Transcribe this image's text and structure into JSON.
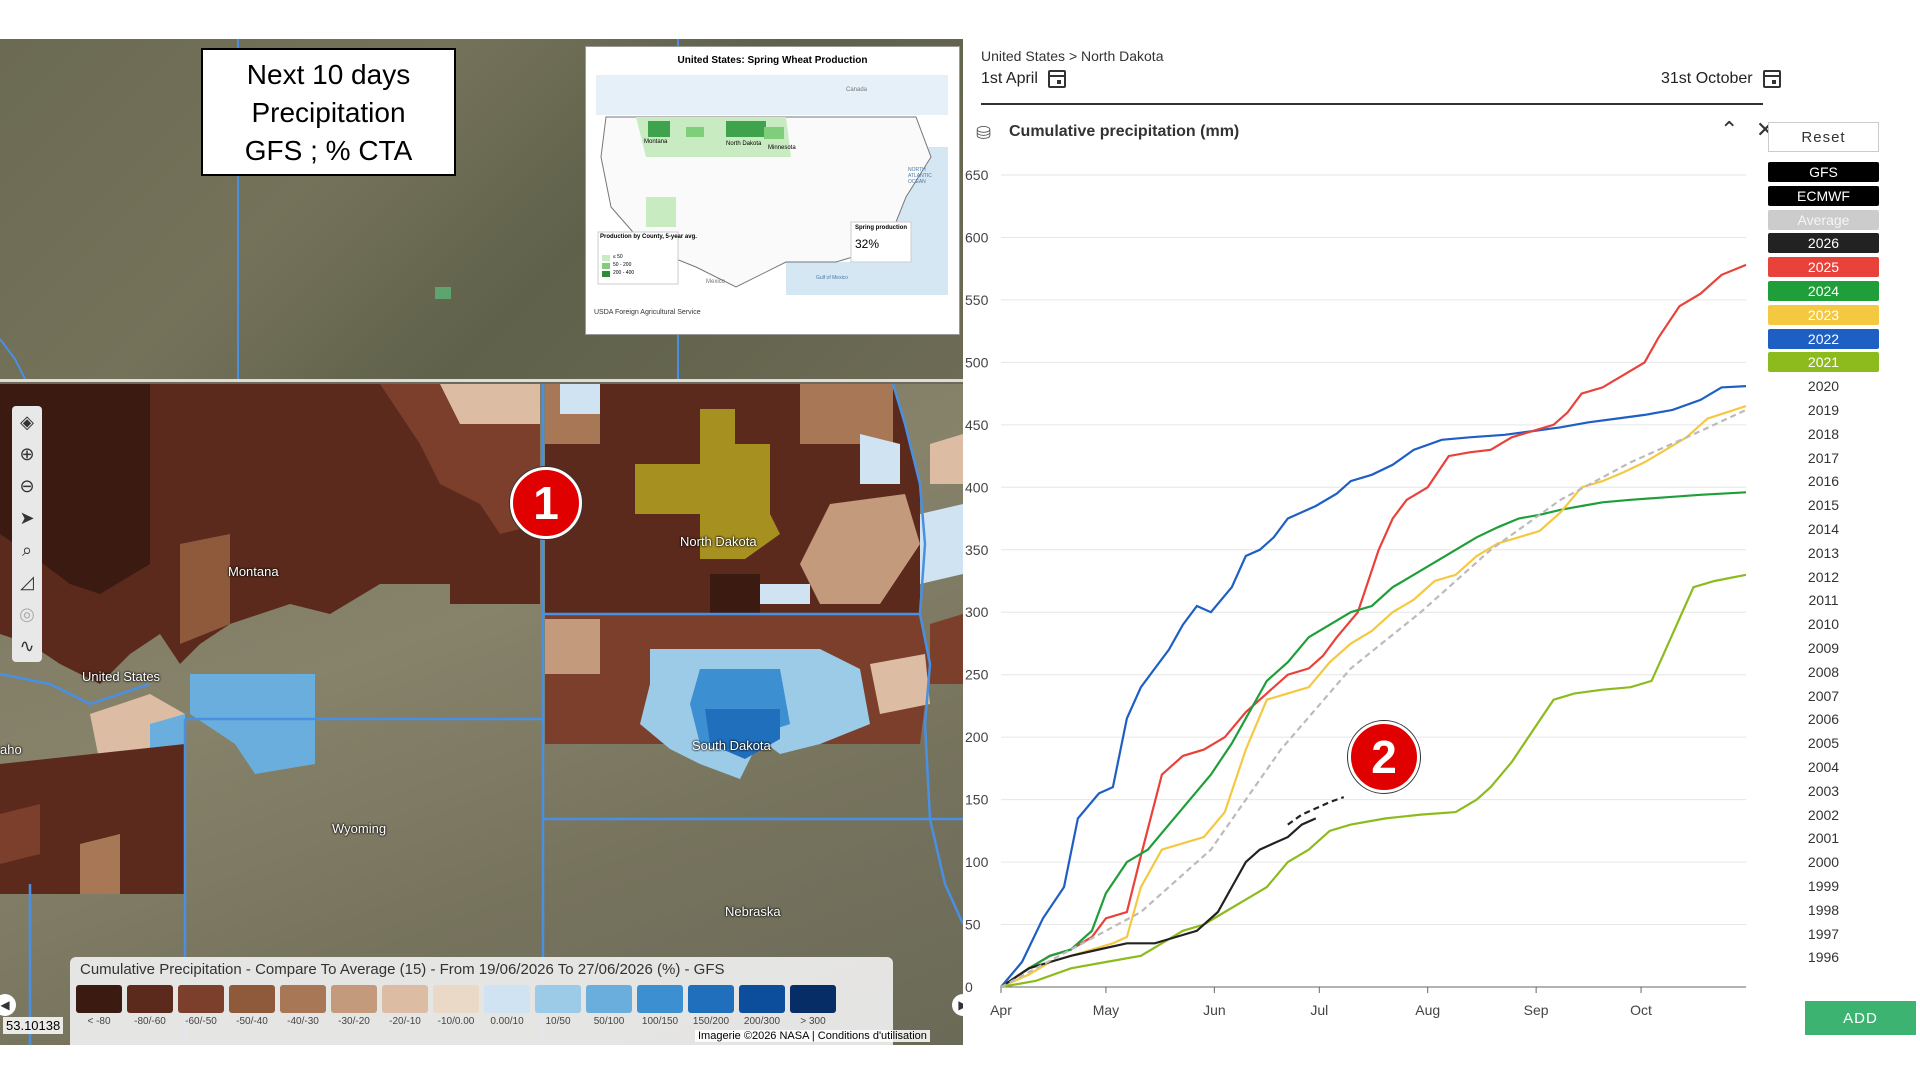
{
  "map": {
    "title_lines": [
      "Next 10 days",
      "Precipitation",
      "GFS ; % CTA"
    ],
    "inset": {
      "title": "United States: Spring Wheat Production",
      "footer": "USDA Foreign Agricultural Service",
      "labels": [
        "Montana",
        "North Dakota",
        "Minnesota",
        "Canada",
        "Mexico",
        "NORTH ATLANTIC OCEAN",
        "Gulf of Mexico"
      ],
      "note_value": "32%",
      "note_title": "Spring production",
      "legend_title": "Production by County, 5-year avg.",
      "legend_items": [
        "≤ 50",
        "50 - 200",
        "200 - 400"
      ]
    },
    "places": [
      "Montana",
      "United States",
      "North Dakota",
      "South Dakota",
      "Wyoming",
      "Nebraska",
      "aho"
    ],
    "markers": [
      "1",
      "2"
    ],
    "toolbar": [
      "layers-icon",
      "zoom-in-icon",
      "zoom-out-icon",
      "locate-icon",
      "search-icon",
      "measure-icon",
      "target-icon",
      "draw-icon"
    ],
    "legend": {
      "title": "Cumulative Precipitation - Compare To Average (15) - From 19/06/2026 To 27/06/2026 (%) - GFS",
      "items": [
        {
          "label": "< -80",
          "color": "#3b1a12"
        },
        {
          "label": "-80/-60",
          "color": "#5c2a1c"
        },
        {
          "label": "-60/-50",
          "color": "#7b3f2b"
        },
        {
          "label": "-50/-40",
          "color": "#8f5a3b"
        },
        {
          "label": "-40/-30",
          "color": "#a87756"
        },
        {
          "label": "-30/-20",
          "color": "#c49a7c"
        },
        {
          "label": "-20/-10",
          "color": "#dcbca3"
        },
        {
          "label": "-10/0.00",
          "color": "#ebd9c8"
        },
        {
          "label": "0.00/10",
          "color": "#cfe3f2"
        },
        {
          "label": "10/50",
          "color": "#9ccbe8"
        },
        {
          "label": "50/100",
          "color": "#6aaedd"
        },
        {
          "label": "100/150",
          "color": "#3c8fd0"
        },
        {
          "label": "150/200",
          "color": "#1f6fbd"
        },
        {
          "label": "200/300",
          "color": "#0c4e9c"
        },
        {
          "label": "> 300",
          "color": "#062d66"
        }
      ]
    },
    "coords": "53.10138",
    "attribution": "Imagerie ©2026 NASA | Conditions d'utilisation"
  },
  "chart_panel": {
    "breadcrumb": "United States > North Dakota",
    "date_start": "1st April",
    "date_end": "31st October",
    "title": "Cumulative precipitation (mm)",
    "reset_label": "Reset",
    "add_label": "ADD",
    "series_buttons": [
      {
        "label": "GFS",
        "color": "#000000"
      },
      {
        "label": "ECMWF",
        "color": "#000000"
      },
      {
        "label": "Average",
        "color": "#cccccc"
      },
      {
        "label": "2026",
        "color": "#222222"
      },
      {
        "label": "2025",
        "color": "#e8423a"
      },
      {
        "label": "2024",
        "color": "#1f9e3a"
      },
      {
        "label": "2023",
        "color": "#f5c842"
      },
      {
        "label": "2022",
        "color": "#1e5fc4"
      },
      {
        "label": "2021",
        "color": "#8dbb1e"
      }
    ],
    "plain_years": [
      "2020",
      "2019",
      "2018",
      "2017",
      "2016",
      "2015",
      "2014",
      "2013",
      "2012",
      "2011",
      "2010",
      "2009",
      "2008",
      "2007",
      "2006",
      "2005",
      "2004",
      "2003",
      "2002",
      "2001",
      "2000",
      "1999",
      "1998",
      "1997",
      "1996"
    ]
  },
  "chart_data": {
    "type": "line",
    "title": "Cumulative precipitation (mm)",
    "x_ticks": [
      "Apr",
      "May",
      "Jun",
      "Jul",
      "Aug",
      "Sep",
      "Oct"
    ],
    "x_days": [
      0,
      30,
      61,
      91,
      122,
      153,
      183
    ],
    "xlim": [
      0,
      213
    ],
    "ylim": [
      0,
      650
    ],
    "y_ticks": [
      0,
      50,
      100,
      150,
      200,
      250,
      300,
      350,
      400,
      450,
      500,
      550,
      600,
      650
    ],
    "grid": true,
    "series": [
      {
        "name": "2022",
        "color": "#1e5fc4",
        "dashed": false,
        "points": [
          [
            0,
            0
          ],
          [
            6,
            20
          ],
          [
            12,
            55
          ],
          [
            18,
            80
          ],
          [
            22,
            135
          ],
          [
            28,
            155
          ],
          [
            32,
            160
          ],
          [
            36,
            215
          ],
          [
            40,
            240
          ],
          [
            44,
            255
          ],
          [
            48,
            270
          ],
          [
            52,
            290
          ],
          [
            56,
            305
          ],
          [
            60,
            300
          ],
          [
            66,
            320
          ],
          [
            70,
            345
          ],
          [
            74,
            350
          ],
          [
            78,
            360
          ],
          [
            82,
            375
          ],
          [
            86,
            380
          ],
          [
            90,
            385
          ],
          [
            96,
            395
          ],
          [
            100,
            405
          ],
          [
            106,
            410
          ],
          [
            112,
            418
          ],
          [
            118,
            430
          ],
          [
            126,
            438
          ],
          [
            134,
            440
          ],
          [
            144,
            442
          ],
          [
            152,
            445
          ],
          [
            160,
            448
          ],
          [
            168,
            452
          ],
          [
            176,
            455
          ],
          [
            184,
            458
          ],
          [
            192,
            462
          ],
          [
            200,
            470
          ],
          [
            206,
            480
          ],
          [
            213,
            481
          ]
        ]
      },
      {
        "name": "2025",
        "color": "#e8423a",
        "dashed": false,
        "points": [
          [
            0,
            0
          ],
          [
            8,
            15
          ],
          [
            14,
            25
          ],
          [
            20,
            30
          ],
          [
            26,
            40
          ],
          [
            30,
            55
          ],
          [
            36,
            60
          ],
          [
            40,
            105
          ],
          [
            46,
            170
          ],
          [
            52,
            185
          ],
          [
            58,
            190
          ],
          [
            64,
            200
          ],
          [
            70,
            220
          ],
          [
            76,
            235
          ],
          [
            82,
            250
          ],
          [
            88,
            255
          ],
          [
            92,
            265
          ],
          [
            96,
            280
          ],
          [
            102,
            300
          ],
          [
            108,
            350
          ],
          [
            112,
            375
          ],
          [
            116,
            390
          ],
          [
            122,
            400
          ],
          [
            128,
            425
          ],
          [
            134,
            428
          ],
          [
            140,
            430
          ],
          [
            146,
            440
          ],
          [
            152,
            445
          ],
          [
            158,
            450
          ],
          [
            162,
            460
          ],
          [
            166,
            475
          ],
          [
            172,
            480
          ],
          [
            178,
            490
          ],
          [
            184,
            500
          ],
          [
            188,
            520
          ],
          [
            194,
            545
          ],
          [
            200,
            555
          ],
          [
            206,
            570
          ],
          [
            213,
            578
          ]
        ]
      },
      {
        "name": "2024",
        "color": "#1f9e3a",
        "dashed": false,
        "points": [
          [
            0,
            0
          ],
          [
            8,
            15
          ],
          [
            14,
            25
          ],
          [
            20,
            30
          ],
          [
            26,
            45
          ],
          [
            30,
            75
          ],
          [
            36,
            100
          ],
          [
            42,
            110
          ],
          [
            48,
            130
          ],
          [
            54,
            150
          ],
          [
            60,
            170
          ],
          [
            66,
            195
          ],
          [
            72,
            225
          ],
          [
            76,
            245
          ],
          [
            82,
            260
          ],
          [
            88,
            280
          ],
          [
            94,
            290
          ],
          [
            100,
            300
          ],
          [
            106,
            305
          ],
          [
            112,
            320
          ],
          [
            118,
            330
          ],
          [
            124,
            340
          ],
          [
            130,
            350
          ],
          [
            136,
            360
          ],
          [
            142,
            368
          ],
          [
            148,
            375
          ],
          [
            154,
            378
          ],
          [
            160,
            382
          ],
          [
            166,
            385
          ],
          [
            172,
            388
          ],
          [
            180,
            390
          ],
          [
            190,
            392
          ],
          [
            200,
            394
          ],
          [
            213,
            396
          ]
        ]
      },
      {
        "name": "2023",
        "color": "#f5c842",
        "dashed": false,
        "points": [
          [
            0,
            0
          ],
          [
            8,
            10
          ],
          [
            14,
            20
          ],
          [
            20,
            25
          ],
          [
            26,
            30
          ],
          [
            32,
            35
          ],
          [
            36,
            40
          ],
          [
            40,
            80
          ],
          [
            46,
            110
          ],
          [
            52,
            115
          ],
          [
            58,
            120
          ],
          [
            64,
            140
          ],
          [
            70,
            190
          ],
          [
            76,
            230
          ],
          [
            82,
            235
          ],
          [
            88,
            240
          ],
          [
            94,
            260
          ],
          [
            100,
            275
          ],
          [
            106,
            285
          ],
          [
            112,
            300
          ],
          [
            118,
            310
          ],
          [
            124,
            325
          ],
          [
            130,
            330
          ],
          [
            136,
            345
          ],
          [
            142,
            355
          ],
          [
            148,
            360
          ],
          [
            154,
            365
          ],
          [
            160,
            380
          ],
          [
            166,
            400
          ],
          [
            172,
            405
          ],
          [
            178,
            412
          ],
          [
            184,
            420
          ],
          [
            190,
            430
          ],
          [
            196,
            440
          ],
          [
            202,
            455
          ],
          [
            213,
            465
          ]
        ]
      },
      {
        "name": "2021",
        "color": "#8dbb1e",
        "dashed": false,
        "points": [
          [
            0,
            0
          ],
          [
            10,
            5
          ],
          [
            20,
            15
          ],
          [
            30,
            20
          ],
          [
            40,
            25
          ],
          [
            46,
            35
          ],
          [
            52,
            45
          ],
          [
            58,
            50
          ],
          [
            64,
            60
          ],
          [
            70,
            70
          ],
          [
            76,
            80
          ],
          [
            82,
            100
          ],
          [
            88,
            110
          ],
          [
            94,
            125
          ],
          [
            100,
            130
          ],
          [
            110,
            135
          ],
          [
            120,
            138
          ],
          [
            130,
            140
          ],
          [
            136,
            150
          ],
          [
            140,
            160
          ],
          [
            146,
            180
          ],
          [
            152,
            205
          ],
          [
            158,
            230
          ],
          [
            164,
            235
          ],
          [
            172,
            238
          ],
          [
            180,
            240
          ],
          [
            186,
            245
          ],
          [
            190,
            270
          ],
          [
            194,
            295
          ],
          [
            198,
            320
          ],
          [
            204,
            325
          ],
          [
            213,
            330
          ]
        ]
      },
      {
        "name": "2026",
        "color": "#222222",
        "dashed": false,
        "points": [
          [
            0,
            0
          ],
          [
            8,
            15
          ],
          [
            14,
            20
          ],
          [
            20,
            25
          ],
          [
            28,
            30
          ],
          [
            36,
            35
          ],
          [
            44,
            35
          ],
          [
            50,
            40
          ],
          [
            56,
            45
          ],
          [
            62,
            60
          ],
          [
            66,
            80
          ],
          [
            70,
            100
          ],
          [
            74,
            110
          ],
          [
            78,
            115
          ],
          [
            82,
            120
          ],
          [
            86,
            130
          ],
          [
            90,
            135
          ]
        ]
      },
      {
        "name": "GFS",
        "color": "#222222",
        "dashed": true,
        "points": [
          [
            82,
            130
          ],
          [
            86,
            138
          ],
          [
            90,
            143
          ],
          [
            94,
            148
          ],
          [
            98,
            152
          ]
        ]
      },
      {
        "name": "Average",
        "color": "#bbbbbb",
        "dashed": true,
        "points": [
          [
            0,
            0
          ],
          [
            20,
            30
          ],
          [
            40,
            60
          ],
          [
            60,
            110
          ],
          [
            80,
            190
          ],
          [
            100,
            255
          ],
          [
            120,
            300
          ],
          [
            140,
            350
          ],
          [
            160,
            390
          ],
          [
            180,
            420
          ],
          [
            200,
            445
          ],
          [
            213,
            462
          ]
        ]
      }
    ]
  }
}
